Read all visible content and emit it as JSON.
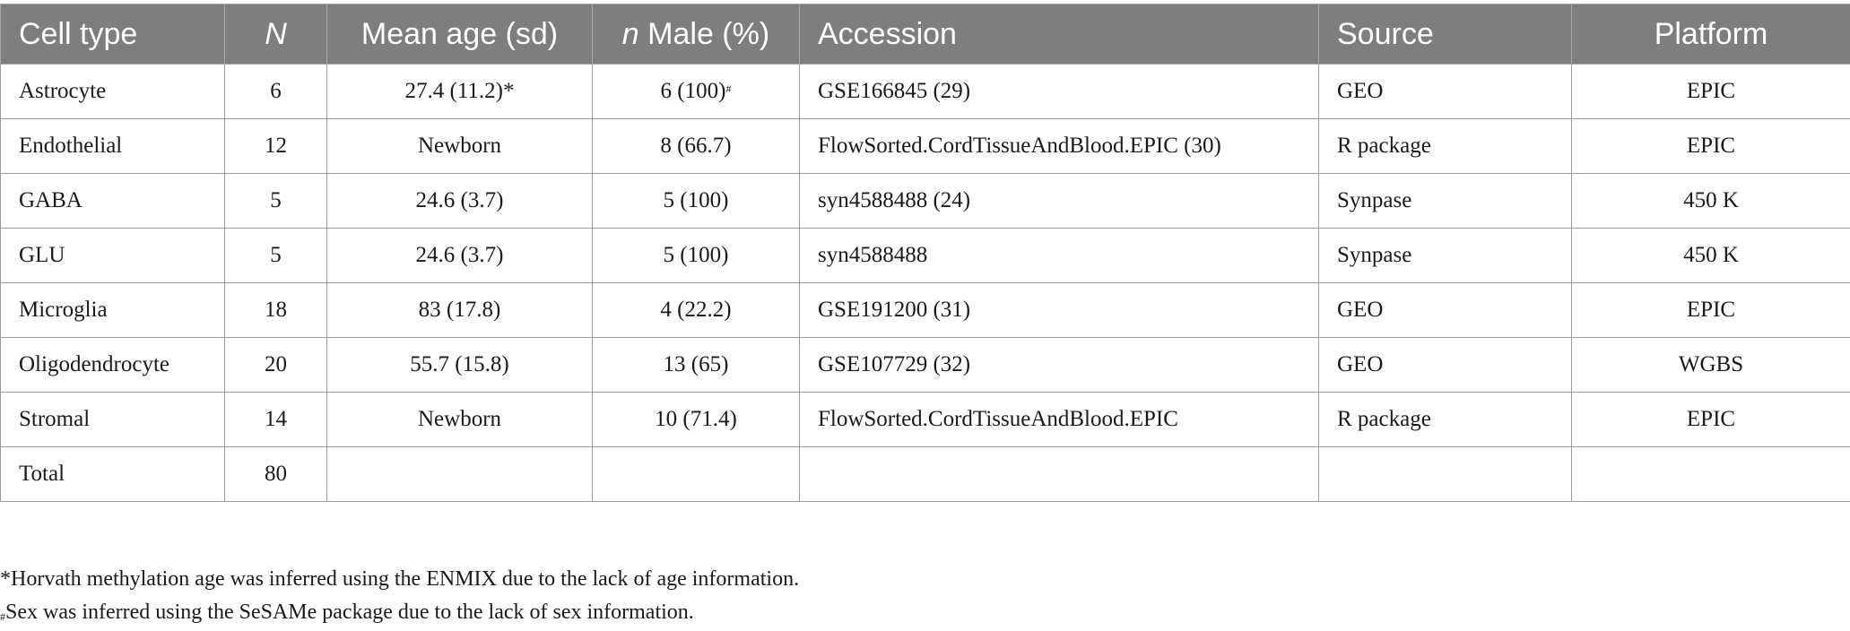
{
  "table": {
    "headers": {
      "cell_type": "Cell type",
      "n_total": "N",
      "mean_age": "Mean age (sd)",
      "n_male_italic": "n",
      "n_male_rest": " Male (%)",
      "accession": "Accession",
      "source": "Source",
      "platform": "Platform"
    },
    "rows": [
      {
        "cell_type": "Astrocyte",
        "n": "6",
        "mean_age": "27.4 (11.2)*",
        "male": "6 (100)",
        "male_mark": "#",
        "accession": "GSE166845 (29)",
        "source": "GEO",
        "platform": "EPIC"
      },
      {
        "cell_type": "Endothelial",
        "n": "12",
        "mean_age": "Newborn",
        "male": "8 (66.7)",
        "male_mark": "",
        "accession": "FlowSorted.CordTissueAndBlood.EPIC (30)",
        "source": "R package",
        "platform": "EPIC"
      },
      {
        "cell_type": "GABA",
        "n": "5",
        "mean_age": "24.6 (3.7)",
        "male": "5 (100)",
        "male_mark": "",
        "accession": "syn4588488 (24)",
        "source": "Synpase",
        "platform": "450 K"
      },
      {
        "cell_type": "GLU",
        "n": "5",
        "mean_age": "24.6 (3.7)",
        "male": "5 (100)",
        "male_mark": "",
        "accession": "syn4588488",
        "source": "Synpase",
        "platform": "450 K"
      },
      {
        "cell_type": "Microglia",
        "n": "18",
        "mean_age": "83 (17.8)",
        "male": "4 (22.2)",
        "male_mark": "",
        "accession": "GSE191200 (31)",
        "source": "GEO",
        "platform": "EPIC"
      },
      {
        "cell_type": "Oligodendrocyte",
        "n": "20",
        "mean_age": "55.7 (15.8)",
        "male": "13 (65)",
        "male_mark": "",
        "accession": "GSE107729 (32)",
        "source": "GEO",
        "platform": "WGBS"
      },
      {
        "cell_type": "Stromal",
        "n": "14",
        "mean_age": "Newborn",
        "male": "10 (71.4)",
        "male_mark": "",
        "accession": "FlowSorted.CordTissueAndBlood.EPIC",
        "source": "R package",
        "platform": "EPIC"
      },
      {
        "cell_type": "Total",
        "n": "80",
        "mean_age": "",
        "male": "",
        "male_mark": "",
        "accession": "",
        "source": "",
        "platform": ""
      }
    ]
  },
  "footnotes": {
    "star": "*Horvath methylation age was inferred using the ENMIX due to the lack of age information.",
    "hash_mark": "#",
    "hash_text": "Sex was inferred using the SeSAMe package due to the lack of sex information."
  }
}
